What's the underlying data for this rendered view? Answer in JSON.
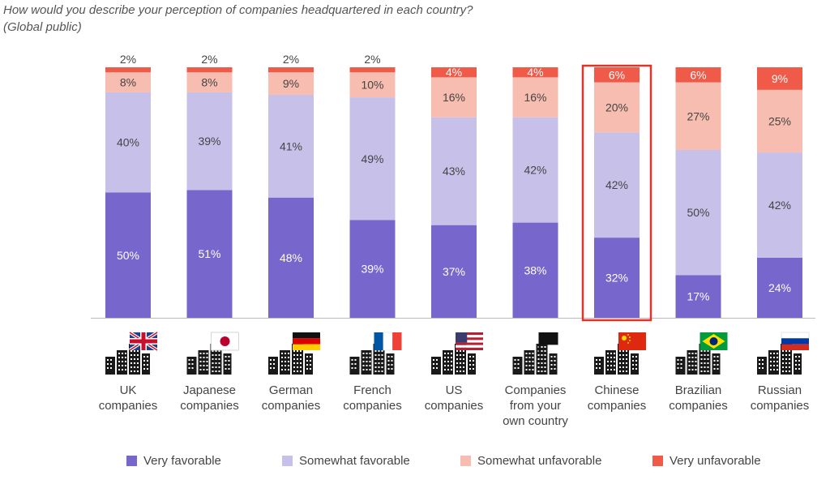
{
  "chart_data": {
    "type": "bar",
    "stacked": true,
    "title": "How would you describe your perception of companies headquartered in each country?",
    "subtitle": "(Global public)",
    "categories": [
      "UK companies",
      "Japanese companies",
      "German companies",
      "French companies",
      "US companies",
      "Companies from your own country",
      "Chinese companies",
      "Brazilian companies",
      "Russian companies"
    ],
    "category_lines": [
      [
        "UK",
        "companies"
      ],
      [
        "Japanese",
        "companies"
      ],
      [
        "German",
        "companies"
      ],
      [
        "French",
        "companies"
      ],
      [
        "US",
        "companies"
      ],
      [
        "Companies",
        "from your",
        "own country"
      ],
      [
        "Chinese",
        "companies"
      ],
      [
        "Brazilian",
        "companies"
      ],
      [
        "Russian",
        "companies"
      ]
    ],
    "flags": [
      "uk",
      "japan",
      "germany",
      "france",
      "usa",
      "own-country",
      "china",
      "brazil",
      "russia"
    ],
    "series": [
      {
        "name": "Very favorable",
        "color": "#7766cc",
        "label_color": "#ffffff",
        "values": [
          50,
          51,
          48,
          39,
          37,
          38,
          32,
          17,
          24
        ]
      },
      {
        "name": "Somewhat favorable",
        "color": "#c7c1ea",
        "label_color": "#444444",
        "values": [
          40,
          39,
          41,
          49,
          43,
          42,
          42,
          50,
          42
        ]
      },
      {
        "name": "Somewhat unfavorable",
        "color": "#f7bdb1",
        "label_color": "#444444",
        "values": [
          8,
          8,
          9,
          10,
          16,
          16,
          20,
          27,
          25
        ]
      },
      {
        "name": "Very unfavorable",
        "color": "#f05a48",
        "label_color": "#ffffff",
        "values": [
          2,
          2,
          2,
          2,
          4,
          4,
          6,
          6,
          9
        ]
      }
    ],
    "ylim": [
      0,
      100
    ],
    "value_suffix": "%",
    "highlighted_category": "Chinese companies",
    "highlight_color": "#e0342a",
    "grid": false,
    "legend_position": "bottom"
  }
}
